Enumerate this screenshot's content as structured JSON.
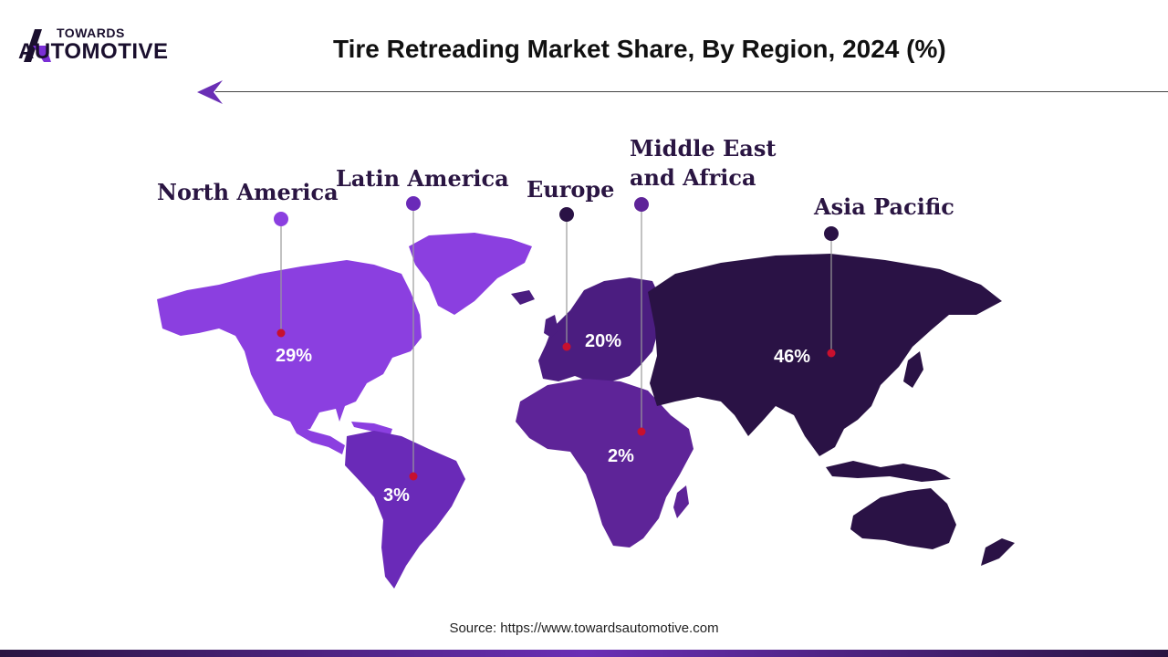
{
  "brand": {
    "top": "TOWARDS",
    "bottom": "AUTOMOTIVE"
  },
  "title": "Tire Retreading Market Share, By Region, 2024 (%)",
  "source": "Source: https://www.towardsautomotive.com",
  "colors": {
    "north_america": "#8b3fe0",
    "latin_america": "#6a2ab8",
    "europe": "#4b1d80",
    "middle_east_africa": "#5e2498",
    "asia_pacific": "#2a1245",
    "marker": "#c8102e"
  },
  "regions": [
    {
      "name": "North America",
      "value": "29%"
    },
    {
      "name": "Latin America",
      "value": "3%"
    },
    {
      "name": "Europe",
      "value": "20%"
    },
    {
      "name": "Middle East",
      "name2": "and Africa",
      "value": "2%"
    },
    {
      "name": "Asia Pacific",
      "value": "46%"
    }
  ]
}
